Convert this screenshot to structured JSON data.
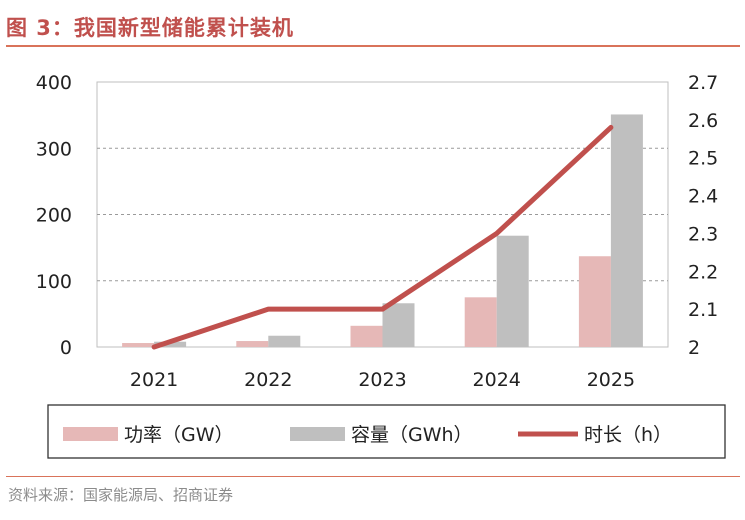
{
  "figure": {
    "title": "图 3：我国新型储能累计装机",
    "source": "资料来源：国家能源局、招商证券"
  },
  "chart_data": {
    "type": "bar",
    "title": "图 3：我国新型储能累计装机",
    "categories": [
      "2021",
      "2022",
      "2023",
      "2024",
      "2025"
    ],
    "series": [
      {
        "name": "功率（GW）",
        "kind": "bar",
        "axis": "left",
        "color": "#e6b8b7",
        "values": [
          6,
          9,
          32,
          75,
          137
        ]
      },
      {
        "name": "容量（GWh）",
        "kind": "bar",
        "axis": "left",
        "color": "#bfbfbf",
        "values": [
          8,
          17,
          66,
          168,
          351
        ]
      },
      {
        "name": "时长（h）",
        "kind": "line",
        "axis": "right",
        "color": "#c0504d",
        "values": [
          2.0,
          2.1,
          2.1,
          2.3,
          2.58
        ]
      }
    ],
    "y_left": {
      "min": 0,
      "max": 400,
      "ticks": [
        "0",
        "100",
        "200",
        "300",
        "400"
      ]
    },
    "y_right": {
      "min": 2,
      "max": 2.7,
      "ticks": [
        "2",
        "2.1",
        "2.2",
        "2.3",
        "2.4",
        "2.5",
        "2.6",
        "2.7"
      ]
    },
    "grid": true,
    "legend_position": "bottom"
  }
}
